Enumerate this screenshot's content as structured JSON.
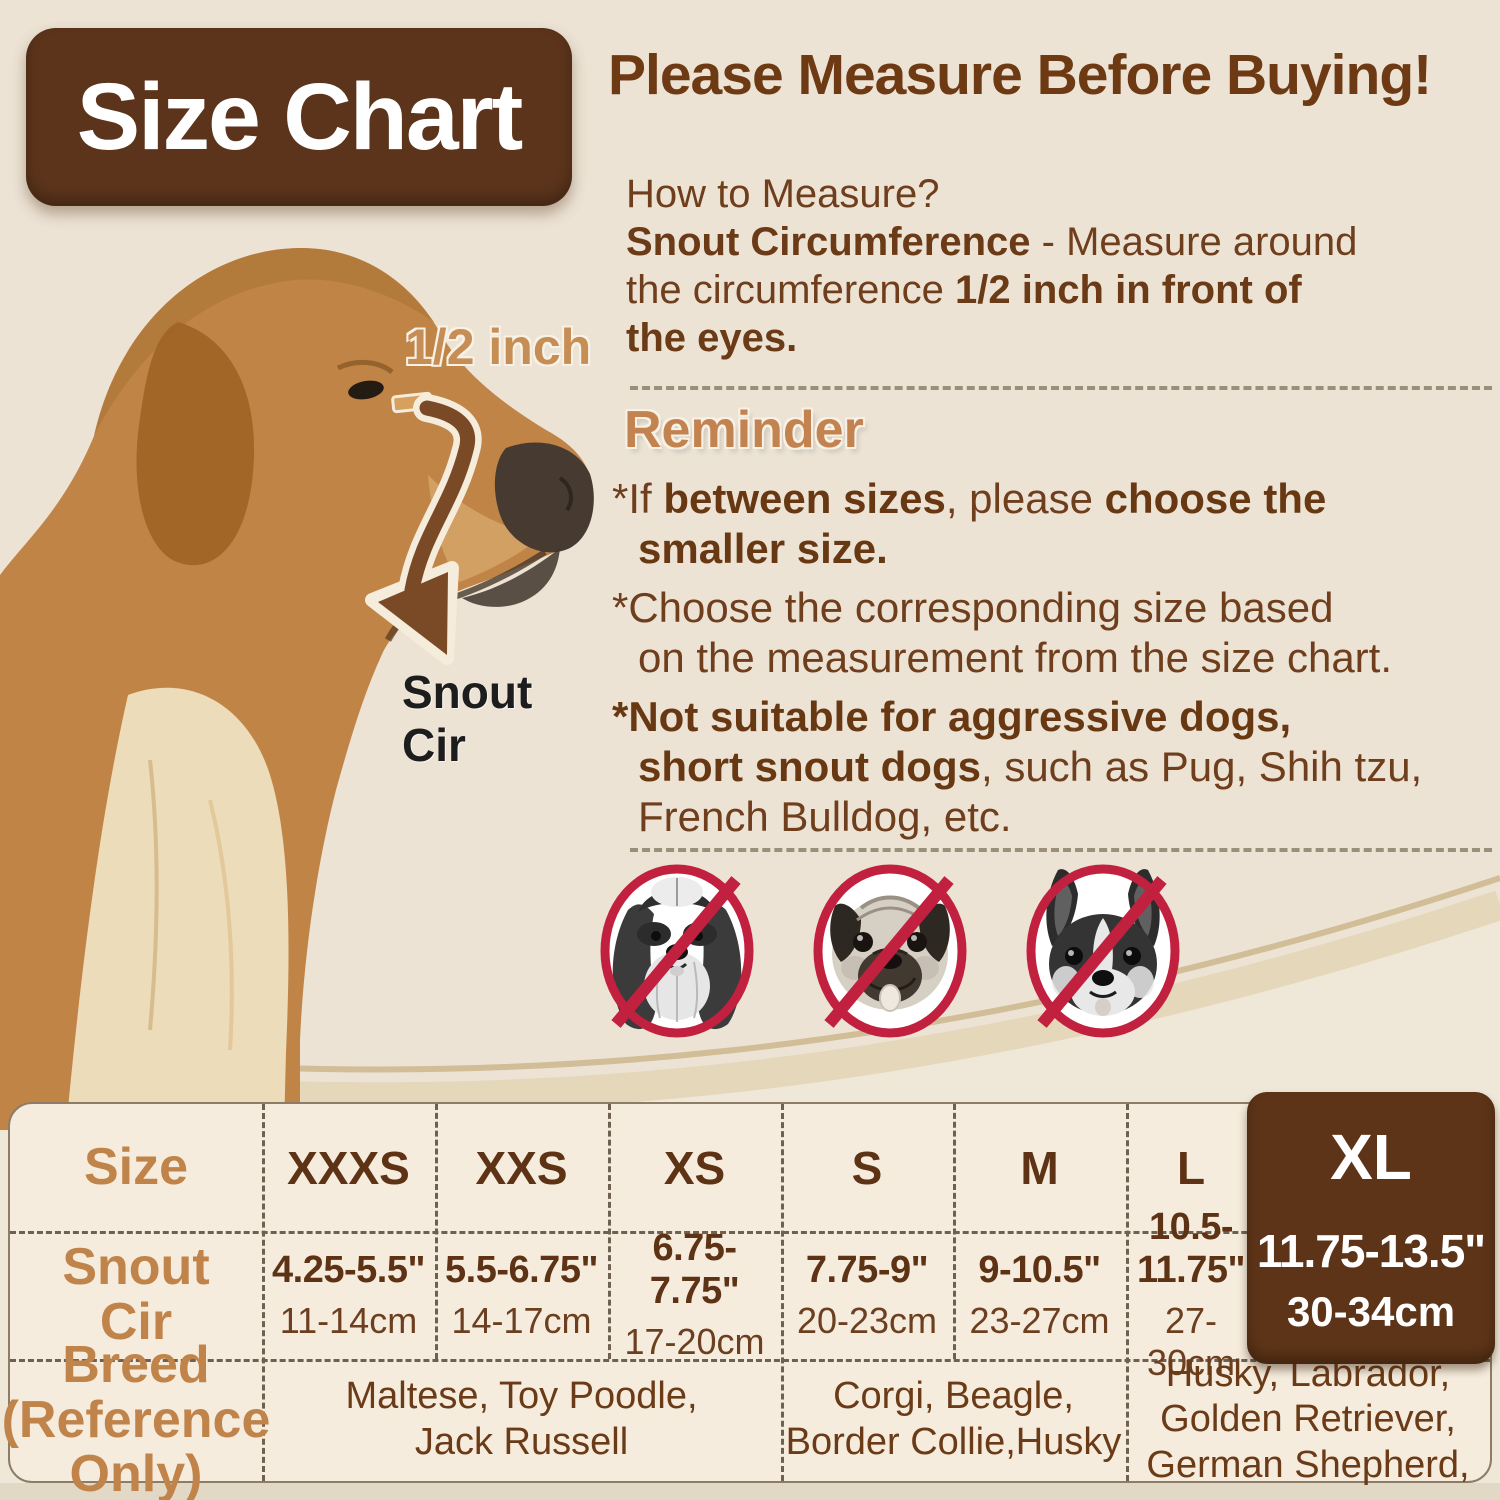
{
  "colors": {
    "page_bg": "#ece3d5",
    "table_bg": "#f5ecdd",
    "badge_brown": "#5b341b",
    "heading_brown": "#6e3a14",
    "body_brown": "#6f3e1c",
    "tan_label": "#c08349",
    "value_brown": "#5e3315",
    "prohibit_red": "#c2203f"
  },
  "title_badge": "Size Chart",
  "headline": "Please Measure Before Buying!",
  "how_to_segments": [
    {
      "t": "How to Measure?\n",
      "b": false
    },
    {
      "t": "Snout Circumference",
      "b": true
    },
    {
      "t": " - Measure around\nthe circumference ",
      "b": false
    },
    {
      "t": "1/2 inch in front of\nthe eyes.",
      "b": true
    }
  ],
  "reminder": {
    "title": "Reminder",
    "bullets": [
      [
        {
          "t": "*If ",
          "b": false
        },
        {
          "t": "between sizes",
          "b": true
        },
        {
          "t": ", please ",
          "b": false
        },
        {
          "t": "choose the\nsmaller size.",
          "b": true
        }
      ],
      [
        {
          "t": "*Choose the corresponding size based\non the measurement from the size chart.",
          "b": false
        }
      ],
      [
        {
          "t": "*Not suitable for aggressive dogs,\nshort snout dogs",
          "b": true
        },
        {
          "t": ", such as Pug, Shih tzu,\nFrench Bulldog, etc.",
          "b": false
        }
      ]
    ]
  },
  "measure_labels": {
    "half_inch": "1/2 inch",
    "snout_cir": "Snout\nCir"
  },
  "prohibited_dogs": [
    "shih-tzu",
    "pug",
    "french-bulldog"
  ],
  "table": {
    "size_label": "Size",
    "snout_label": "Snout\nCir",
    "breed_label": "Breed",
    "breed_note": "(Reference Only)",
    "columns": [
      {
        "size": "XXXS",
        "inches": "4.25-5.5\"",
        "cm": "11-14cm"
      },
      {
        "size": "XXS",
        "inches": "5.5-6.75\"",
        "cm": "14-17cm"
      },
      {
        "size": "XS",
        "inches": "6.75-7.75\"",
        "cm": "17-20cm"
      },
      {
        "size": "S",
        "inches": "7.75-9\"",
        "cm": "20-23cm"
      },
      {
        "size": "M",
        "inches": "9-10.5\"",
        "cm": "23-27cm"
      },
      {
        "size": "L",
        "inches": "10.5-11.75\"",
        "cm": "27-30cm"
      },
      {
        "size": "XL",
        "inches": "11.75-13.5\"",
        "cm": "30-34cm"
      }
    ],
    "highlighted_size": "XL",
    "breeds": [
      "Maltese, Toy Poodle,\nJack Russell",
      "Corgi, Beagle,\nBorder Collie,Husky",
      "Husky, Labrador,\nGolden Retriever,\nGerman Shepherd,"
    ]
  }
}
